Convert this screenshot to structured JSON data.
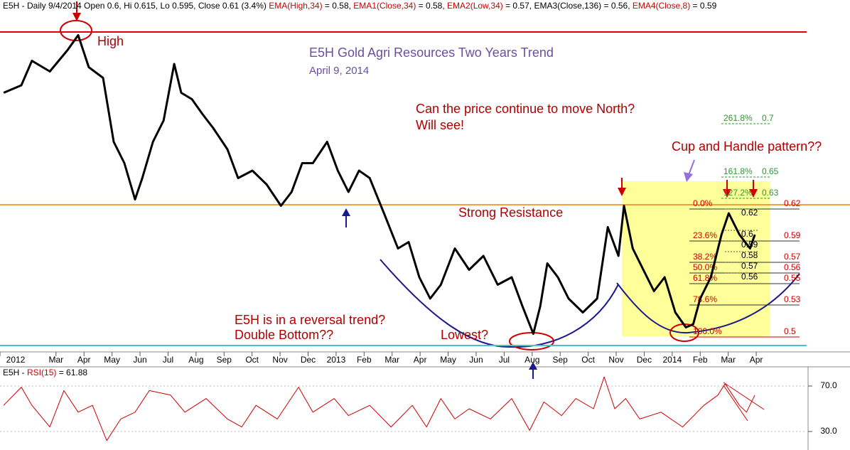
{
  "chart_data": [
    {
      "type": "line",
      "title": "E5H Gold Agri Resources Two Years Trend",
      "subtitle": "April 9, 2014",
      "header_segments": [
        {
          "text": "E5H - Daily 9/4/2014 Open 0.6, Hi 0.615, Lo 0.595, Close 0.61 (3.4%) ",
          "color": "#000000"
        },
        {
          "text": "EMA(High,34)",
          "color": "#cc0000"
        },
        {
          "text": " = 0.58, ",
          "color": "#000000"
        },
        {
          "text": "EMA1(Close,34)",
          "color": "#cc0000"
        },
        {
          "text": " = 0.58, ",
          "color": "#000000"
        },
        {
          "text": "EMA2(Low,34)",
          "color": "#cc0000"
        },
        {
          "text": " = 0.57, ",
          "color": "#000000"
        },
        {
          "text": "EMA3(Close,136)",
          "color": "#000000"
        },
        {
          "text": " = 0.56, ",
          "color": "#000000"
        },
        {
          "text": "EMA4(Close,8)",
          "color": "#cc0000"
        },
        {
          "text": " = 0.59",
          "color": "#000000"
        }
      ],
      "x": [
        0.13,
        0.76,
        1.14,
        1.78,
        2.41,
        2.79,
        3.17,
        3.68,
        4.06,
        4.44,
        4.82,
        5.08,
        5.46,
        5.84,
        6.22,
        6.47,
        6.85,
        7.23,
        7.61,
        8.12,
        8.5,
        9.01,
        9.52,
        10.03,
        10.41,
        10.79,
        11.17,
        11.68,
        12.06,
        12.44,
        12.82,
        13.2,
        13.71,
        14.21,
        14.59,
        14.97,
        15.36,
        15.74,
        16.24,
        16.75,
        17.26,
        17.77,
        18.27,
        18.65,
        19.04,
        19.29,
        19.54,
        19.92,
        20.3,
        20.81,
        21.32,
        21.7,
        22.08,
        22.28,
        22.59,
        22.97,
        23.35,
        23.73,
        24.11,
        24.49,
        24.75,
        25.0,
        25.38,
        25.76,
        26.02,
        26.4,
        26.78,
        26.95
      ],
      "series": [
        {
          "color": "#000000",
          "values": [
            0.729,
            0.736,
            0.759,
            0.749,
            0.769,
            0.783,
            0.753,
            0.743,
            0.683,
            0.663,
            0.629,
            0.649,
            0.683,
            0.703,
            0.756,
            0.729,
            0.723,
            0.709,
            0.696,
            0.676,
            0.649,
            0.656,
            0.643,
            0.623,
            0.636,
            0.663,
            0.663,
            0.683,
            0.656,
            0.636,
            0.656,
            0.649,
            0.616,
            0.583,
            0.589,
            0.556,
            0.536,
            0.549,
            0.583,
            0.563,
            0.576,
            0.549,
            0.556,
            0.529,
            0.503,
            0.529,
            0.569,
            0.556,
            0.536,
            0.523,
            0.536,
            0.603,
            0.576,
            0.623,
            0.583,
            0.563,
            0.543,
            0.556,
            0.523,
            0.509,
            0.512,
            0.536,
            0.556,
            0.596,
            0.616,
            0.596,
            0.583,
            0.596
          ]
        }
      ],
      "xlim": [
        0,
        28.8
      ],
      "xticks": [
        {
          "value": 0,
          "label": "2012"
        },
        {
          "value": 2,
          "label": "Mar"
        },
        {
          "value": 3,
          "label": "Apr"
        },
        {
          "value": 4,
          "label": "May"
        },
        {
          "value": 5,
          "label": "Jun"
        },
        {
          "value": 6,
          "label": "Jul"
        },
        {
          "value": 7,
          "label": "Aug"
        },
        {
          "value": 8,
          "label": "Sep"
        },
        {
          "value": 9,
          "label": "Oct"
        },
        {
          "value": 10,
          "label": "Nov"
        },
        {
          "value": 11,
          "label": "Dec"
        },
        {
          "value": 12,
          "label": "2013"
        },
        {
          "value": 13,
          "label": "Feb"
        },
        {
          "value": 14,
          "label": "Mar"
        },
        {
          "value": 15,
          "label": "Apr"
        },
        {
          "value": 16,
          "label": "May"
        },
        {
          "value": 17,
          "label": "Jun"
        },
        {
          "value": 18,
          "label": "Jul"
        },
        {
          "value": 19,
          "label": "Aug"
        },
        {
          "value": 20,
          "label": "Sep"
        },
        {
          "value": 21,
          "label": "Oct"
        },
        {
          "value": 22,
          "label": "Nov"
        },
        {
          "value": 23,
          "label": "Dec"
        },
        {
          "value": 24,
          "label": "2014"
        },
        {
          "value": 25,
          "label": "Feb"
        },
        {
          "value": 26,
          "label": "Mar"
        },
        {
          "value": 27,
          "label": "Apr"
        }
      ],
      "ylim": [
        0.486,
        0.804
      ],
      "reference_lines": [
        {
          "value": 0.786,
          "color": "#dd0000"
        },
        {
          "value": 0.624,
          "color": "#f5a040"
        },
        {
          "value": 0.492,
          "color": "#40c8c8"
        }
      ],
      "annotations": [
        {
          "text": "High",
          "color": "#b00000"
        },
        {
          "text": "Can the price continue to move North?",
          "color": "#b00000"
        },
        {
          "text": "Will see!",
          "color": "#b00000"
        },
        {
          "text": "Cup and Handle pattern??",
          "color": "#b00000"
        },
        {
          "text": "Strong Resistance",
          "color": "#b00000"
        },
        {
          "text": "E5H is in a reversal trend?",
          "color": "#b00000"
        },
        {
          "text": "Double Bottom??",
          "color": "#b00000"
        },
        {
          "text": "Lowest?",
          "color": "#b00000"
        }
      ],
      "fib_levels": [
        {
          "label": "0.0%",
          "value": 0.62
        },
        {
          "label": "23.6%",
          "value": 0.59
        },
        {
          "label": "38.2%",
          "value": 0.57
        },
        {
          "label": "50.0%",
          "value": 0.56
        },
        {
          "label": "61.8%",
          "value": 0.55
        },
        {
          "label": "78.6%",
          "value": 0.53
        },
        {
          "label": "100.0%",
          "value": 0.5
        }
      ],
      "fib_extensions": [
        {
          "label": "261.8%",
          "value": 0.7
        },
        {
          "label": "161.8%",
          "value": 0.65
        },
        {
          "label": "127.2%",
          "value": 0.63
        }
      ],
      "fib2_values": [
        0.62,
        0.6,
        0.59,
        0.58,
        0.57,
        0.56
      ]
    },
    {
      "type": "line",
      "header_segments": [
        {
          "text": "E5H - ",
          "color": "#000000"
        },
        {
          "text": "RSI(15)",
          "color": "#cc0000"
        },
        {
          "text": " = 61.88",
          "color": "#000000"
        }
      ],
      "x": [
        0.13,
        0.76,
        1.14,
        1.78,
        2.28,
        2.79,
        3.3,
        3.81,
        4.31,
        4.82,
        5.33,
        6.09,
        6.6,
        7.36,
        8.12,
        8.63,
        9.14,
        9.9,
        10.66,
        11.17,
        11.93,
        12.44,
        13.2,
        13.96,
        14.72,
        15.23,
        15.74,
        16.24,
        16.75,
        17.51,
        18.27,
        18.91,
        19.42,
        20.05,
        20.56,
        21.19,
        21.57,
        21.95,
        22.34,
        22.84,
        23.6,
        24.37,
        25.13,
        25.63,
        25.89,
        26.4,
        26.65,
        26.95
      ],
      "series": [
        {
          "color": "#cc0000",
          "values": [
            53,
            69,
            53,
            34,
            66,
            47,
            53,
            22,
            41,
            47,
            66,
            62,
            47,
            59,
            41,
            34,
            53,
            41,
            69,
            47,
            59,
            44,
            53,
            34,
            53,
            34,
            59,
            41,
            50,
            41,
            59,
            31,
            56,
            44,
            59,
            50,
            78,
            50,
            59,
            41,
            47,
            34,
            53,
            62,
            72,
            53,
            47,
            62
          ]
        }
      ],
      "xlim": [
        0,
        28.8
      ],
      "ylim": [
        15.6,
        84.4
      ],
      "yticks": [
        {
          "value": 70,
          "label": "70.0"
        },
        {
          "value": 30,
          "label": "30.0"
        }
      ]
    }
  ]
}
